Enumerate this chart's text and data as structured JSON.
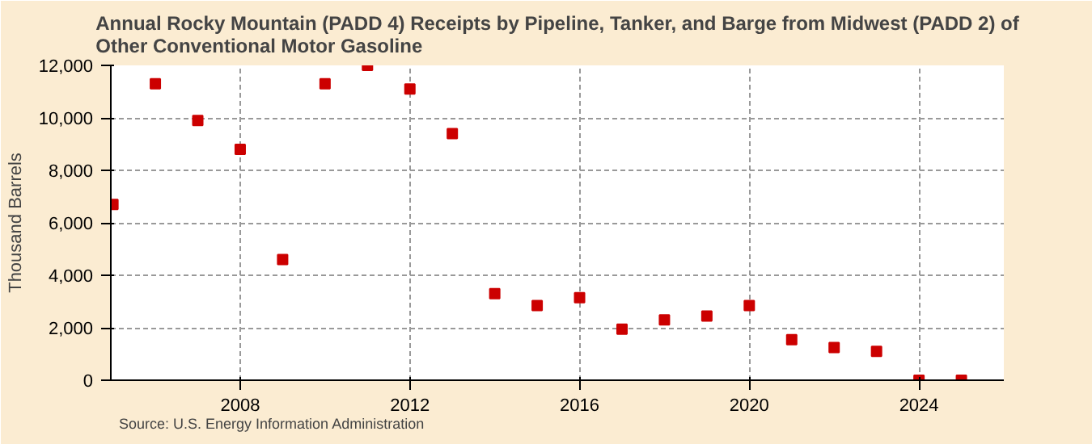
{
  "chart_data": {
    "type": "scatter",
    "title": "Annual Rocky Mountain (PADD 4) Receipts by Pipeline, Tanker, and Barge from Midwest (PADD 2) of Other Conventional Motor Gasoline",
    "ylabel": "Thousand Barrels",
    "annotations": [
      "Source: U.S. Energy Information Administration"
    ],
    "x": [
      2005,
      2006,
      2007,
      2008,
      2009,
      2010,
      2011,
      2012,
      2013,
      2014,
      2015,
      2016,
      2017,
      2018,
      2019,
      2020,
      2021,
      2022,
      2023,
      2024,
      2025
    ],
    "series": [
      {
        "color": "#cc0000",
        "values": [
          6700,
          11300,
          9900,
          8800,
          4600,
          11300,
          12000,
          11100,
          9400,
          3300,
          2850,
          3150,
          1950,
          2300,
          2450,
          2850,
          1550,
          1250,
          1100,
          0,
          0
        ]
      }
    ],
    "xlim": [
      2004.95,
      2026
    ],
    "xticks": [
      2008,
      2012,
      2016,
      2020,
      2024
    ],
    "ylim": [
      0,
      12000
    ],
    "yticks": [
      {
        "value": 0,
        "label": "0"
      },
      {
        "value": 2000,
        "label": "2,000"
      },
      {
        "value": 4000,
        "label": "4,000"
      },
      {
        "value": 6000,
        "label": "6,000"
      },
      {
        "value": 8000,
        "label": "8,000"
      },
      {
        "value": 10000,
        "label": "10,000"
      },
      {
        "value": 12000,
        "label": "12,000"
      }
    ],
    "grid": true,
    "marker": "square"
  }
}
